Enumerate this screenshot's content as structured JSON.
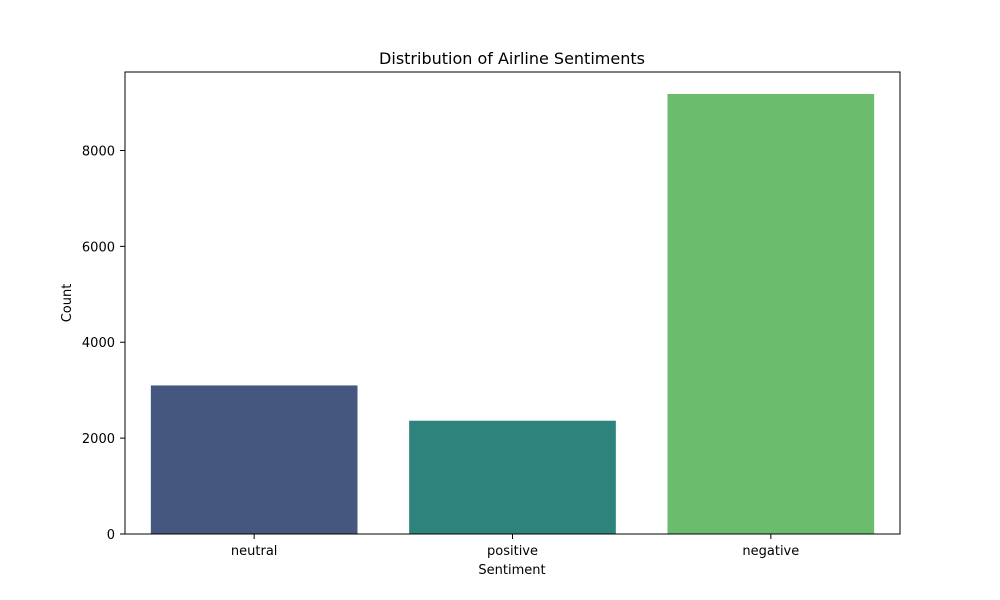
{
  "chart_data": {
    "type": "bar",
    "title": "Distribution of Airline Sentiments",
    "xlabel": "Sentiment",
    "ylabel": "Count",
    "categories": [
      "neutral",
      "positive",
      "negative"
    ],
    "values": [
      3099,
      2363,
      9178
    ],
    "colors": [
      "#46577f",
      "#2e847d",
      "#6bbc6d"
    ],
    "ylim": [
      0,
      9637
    ],
    "yticks": [
      0,
      2000,
      4000,
      6000,
      8000
    ],
    "ytick_labels": [
      "0",
      "2000",
      "4000",
      "6000",
      "8000"
    ],
    "grid": false,
    "legend": "none"
  }
}
